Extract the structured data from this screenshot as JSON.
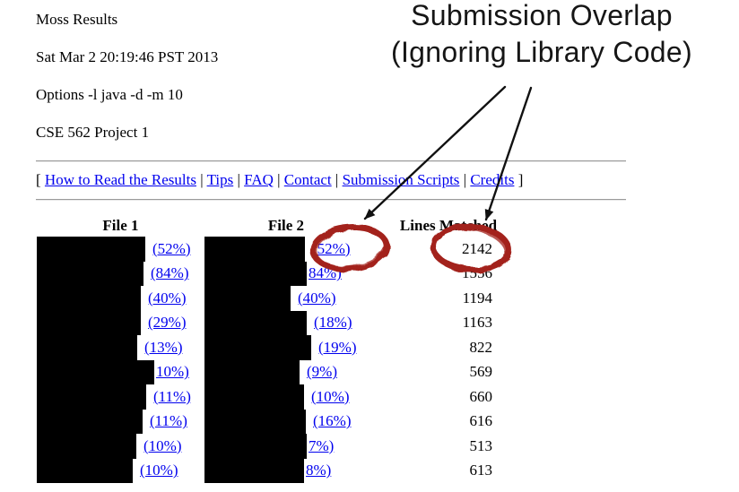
{
  "page": {
    "title": "Moss Results",
    "timestamp": "Sat Mar 2 20:19:46 PST 2013",
    "options": "Options -l java -d -m 10",
    "project": "CSE 562 Project 1"
  },
  "nav": {
    "open_bracket": "[",
    "close_bracket": "]",
    "separator": "|",
    "links": [
      "How to Read the Results",
      "Tips",
      "FAQ",
      "Contact",
      "Submission Scripts",
      "Credits"
    ]
  },
  "annotation": {
    "line1": "Submission Overlap",
    "line2": "(Ignoring Library Code)"
  },
  "table": {
    "headers": [
      "File 1",
      "File 2",
      "Lines Matched"
    ],
    "rows": [
      {
        "file1_pct": "(52%)",
        "file1_redact_w": 121,
        "file2_pct": "(52%)",
        "file2_redact_w": 112,
        "lines": "2142"
      },
      {
        "file1_pct": "(84%)",
        "file1_redact_w": 119,
        "file2_pct": "84%)",
        "file2_redact_w": 114,
        "lines": "1556"
      },
      {
        "file1_pct": "(40%)",
        "file1_redact_w": 116,
        "file2_pct": "(40%)",
        "file2_redact_w": 96,
        "lines": "1194"
      },
      {
        "file1_pct": "(29%)",
        "file1_redact_w": 116,
        "file2_pct": "(18%)",
        "file2_redact_w": 114,
        "lines": "1163"
      },
      {
        "file1_pct": "(13%)",
        "file1_redact_w": 112,
        "file2_pct": "(19%)",
        "file2_redact_w": 119,
        "lines": "822"
      },
      {
        "file1_pct": "10%)",
        "file1_redact_w": 131,
        "file2_pct": "(9%)",
        "file2_redact_w": 106,
        "lines": "569"
      },
      {
        "file1_pct": "(11%)",
        "file1_redact_w": 122,
        "file2_pct": "(10%)",
        "file2_redact_w": 111,
        "lines": "660"
      },
      {
        "file1_pct": "(11%)",
        "file1_redact_w": 118,
        "file2_pct": "(16%)",
        "file2_redact_w": 113,
        "lines": "616"
      },
      {
        "file1_pct": "(10%)",
        "file1_redact_w": 111,
        "file2_pct": "7%)",
        "file2_redact_w": 114,
        "lines": "513"
      },
      {
        "file1_pct": "(10%)",
        "file1_redact_w": 107,
        "file2_pct": "8%)",
        "file2_redact_w": 111,
        "lines": "613"
      }
    ]
  },
  "colors": {
    "link_blue": "#0000EE",
    "redaction_black": "#000000",
    "annotation_red": "#A3231D",
    "arrow_black": "#111111"
  }
}
